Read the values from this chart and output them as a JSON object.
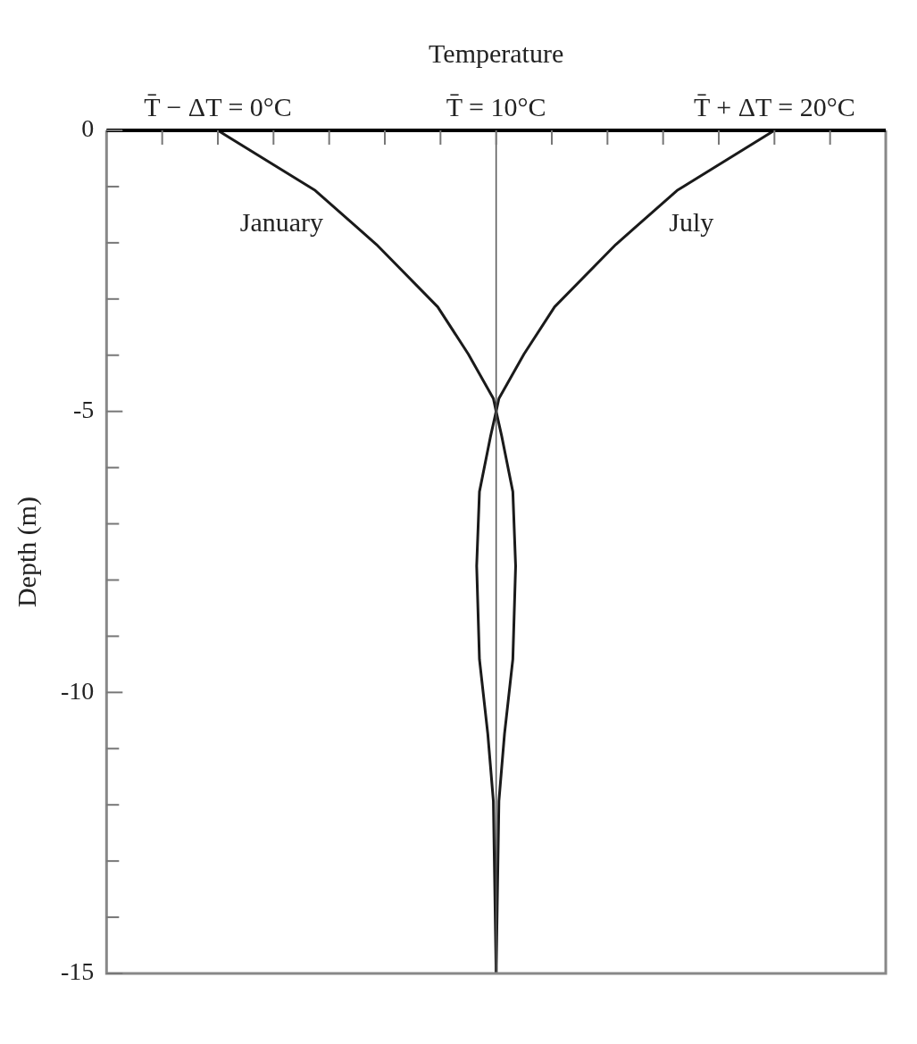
{
  "chart_data": {
    "type": "line",
    "xlabel": "Temperature",
    "ylabel": "Depth (m)",
    "xlim": [
      -4,
      24
    ],
    "ylim": [
      -15,
      0
    ],
    "xticks": [
      {
        "value": -2,
        "label": null
      },
      {
        "value": 0,
        "label": "T̄ − ΔT = 0°C"
      },
      {
        "value": 2,
        "label": null
      },
      {
        "value": 4,
        "label": null
      },
      {
        "value": 6,
        "label": null
      },
      {
        "value": 8,
        "label": null
      },
      {
        "value": 10,
        "label": "T̄ = 10°C"
      },
      {
        "value": 12,
        "label": null
      },
      {
        "value": 14,
        "label": null
      },
      {
        "value": 16,
        "label": null
      },
      {
        "value": 18,
        "label": null
      },
      {
        "value": 20,
        "label": "T̄ + ΔT = 20°C"
      },
      {
        "value": 22,
        "label": null
      }
    ],
    "yticks": [
      0,
      {
        "value": -1,
        "label": null
      },
      {
        "value": -2,
        "label": null
      },
      {
        "value": -3,
        "label": null
      },
      {
        "value": -4,
        "label": null
      },
      -5,
      {
        "value": -6,
        "label": null
      },
      {
        "value": -7,
        "label": null
      },
      {
        "value": -8,
        "label": null
      },
      {
        "value": -9,
        "label": null
      },
      -10,
      {
        "value": -11,
        "label": null
      },
      {
        "value": -12,
        "label": null
      },
      {
        "value": -13,
        "label": null
      },
      {
        "value": -14,
        "label": null
      },
      -15
    ],
    "series": [
      {
        "name": "January",
        "color": "#1a1a1a",
        "x": [
          0,
          3.5,
          5.7,
          7.9,
          9.0,
          9.9,
          10,
          10.2,
          10.6,
          10.7,
          10.6,
          10.3,
          10.1,
          10
        ],
        "values": [
          0,
          -1.07,
          -2.03,
          -3.14,
          -3.98,
          -4.77,
          -5,
          -5.44,
          -6.43,
          -7.75,
          -9.41,
          -10.74,
          -11.93,
          -15
        ]
      },
      {
        "name": "July",
        "color": "#1a1a1a",
        "x": [
          20,
          16.5,
          14.3,
          12.1,
          11.0,
          10.1,
          10,
          9.8,
          9.4,
          9.3,
          9.4,
          9.7,
          9.9,
          10
        ],
        "values": [
          0,
          -1.07,
          -2.03,
          -3.14,
          -3.98,
          -4.77,
          -5,
          -5.44,
          -6.43,
          -7.75,
          -9.41,
          -10.74,
          -11.93,
          -15
        ]
      }
    ],
    "ref_lines": [
      {
        "axis": "x",
        "value": 10,
        "color": "#555555"
      }
    ],
    "legend": false,
    "marker": "none",
    "line_style": "solid"
  }
}
